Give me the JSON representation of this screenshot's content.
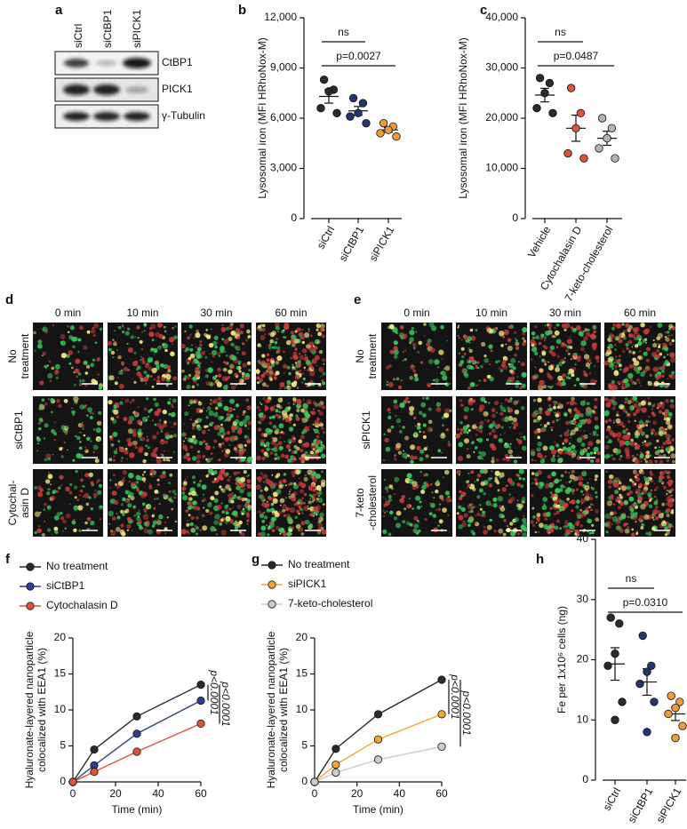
{
  "panel_labels": [
    "a",
    "b",
    "c",
    "d",
    "e",
    "f",
    "g",
    "h"
  ],
  "blot": {
    "lanes": [
      "siCtrl",
      "siCtBP1",
      "siPICK1"
    ],
    "rows": [
      "CtBP1",
      "PICK1",
      "γ-Tubulin"
    ]
  },
  "micrographs": {
    "d": {
      "columns": [
        "0 min",
        "10 min",
        "30 min",
        "60 min"
      ],
      "rows": [
        [
          "No",
          "treatment"
        ],
        [
          "siCtBP1"
        ],
        [
          "Cytochal-",
          "asin D"
        ]
      ]
    },
    "e": {
      "columns": [
        "0 min",
        "10 min",
        "30 min",
        "60 min"
      ],
      "rows": [
        [
          "No",
          "treatment"
        ],
        [
          "siPICK1"
        ],
        [
          "7-keto",
          "-cholesterol"
        ]
      ]
    }
  },
  "chart_data": [
    {
      "type": "dot",
      "ylabel": "Lysosomal iron (MFI HRhoNox-M)",
      "categories": [
        "siCtrl",
        "siCtBP1",
        "siPICK1"
      ],
      "colors": [
        "#2b2b2b",
        "#24356f",
        "#ef9a3c"
      ],
      "values": [
        [
          8300,
          7700,
          7600,
          6600,
          6300
        ],
        [
          7200,
          6900,
          6300,
          6100,
          5700
        ],
        [
          5700,
          5500,
          5300,
          5100,
          4900
        ]
      ],
      "means": [
        7300,
        6440,
        5300
      ],
      "sems": [
        400,
        260,
        140
      ],
      "ylim": [
        0,
        12000
      ],
      "yticks": [
        0,
        {
          "value": 3000,
          "label": "3,000"
        },
        {
          "value": 6000,
          "label": "6,000"
        },
        {
          "value": 9000,
          "label": "9,000"
        },
        {
          "value": 12000,
          "label": "12,000"
        }
      ],
      "comparisons": [
        {
          "label": "ns",
          "groups": [
            "siCtrl",
            "siCtBP1"
          ]
        },
        {
          "label": "p=0.0027",
          "groups": [
            "siCtrl",
            "siPICK1"
          ]
        }
      ]
    },
    {
      "type": "dot",
      "ylabel": "Lysosomal iron (MFI HRhoNox-M)",
      "categories": [
        "Vehicle",
        "Cytochalasin D",
        "7-keto-cholesterol"
      ],
      "colors": [
        "#2b2b2b",
        "#e0523a",
        "#b3b3b3"
      ],
      "values": [
        [
          28000,
          27000,
          25000,
          22000,
          21000
        ],
        [
          26000,
          21000,
          18000,
          13000,
          12000
        ],
        [
          20000,
          18000,
          16000,
          14000,
          12000
        ]
      ],
      "means": [
        24600,
        18000,
        16000
      ],
      "sems": [
        1350,
        2600,
        1400
      ],
      "ylim": [
        0,
        40000
      ],
      "yticks": [
        0,
        {
          "value": 10000,
          "label": "10,000"
        },
        {
          "value": 20000,
          "label": "20,000"
        },
        {
          "value": 30000,
          "label": "30,000"
        },
        {
          "value": 40000,
          "label": "40,000"
        }
      ],
      "comparisons": [
        {
          "label": "ns",
          "groups": [
            "Vehicle",
            "Cytochalasin D"
          ]
        },
        {
          "label": "p=0.0487",
          "groups": [
            "Vehicle",
            "7-keto-cholesterol"
          ]
        }
      ]
    },
    {
      "type": "line",
      "xlabel": "Time (min)",
      "ylabel": [
        "Hyaluronate-layered nanoparticle",
        "colocalized with EEA1 (%)"
      ],
      "x": [
        0,
        10,
        30,
        60
      ],
      "xlim": [
        0,
        60
      ],
      "xticks": [
        0,
        20,
        40,
        60
      ],
      "ylim": [
        0,
        20
      ],
      "yticks": [
        0,
        5,
        10,
        15,
        20
      ],
      "series": [
        {
          "name": "No treatment",
          "color": "#2b2b2b",
          "values": [
            0,
            4.5,
            9.1,
            13.5
          ]
        },
        {
          "name": "siCtBP1",
          "color": "#2e3f8f",
          "values": [
            0,
            2.3,
            6.7,
            11.3
          ]
        },
        {
          "name": "Cytochalasin D",
          "color": "#e0523a",
          "values": [
            0,
            1.4,
            4.2,
            8.1
          ]
        }
      ],
      "comparisons": [
        {
          "label": "p<0.0001",
          "series": [
            "No treatment",
            "siCtBP1"
          ]
        },
        {
          "label": "p<0.0001",
          "series": [
            "No treatment",
            "Cytochalasin D"
          ]
        }
      ]
    },
    {
      "type": "line",
      "xlabel": "Time (min)",
      "ylabel": [
        "Hyaluronate-layered nanoparticle",
        "colocalized with EEA1 (%)"
      ],
      "x": [
        0,
        10,
        30,
        60
      ],
      "xlim": [
        0,
        60
      ],
      "xticks": [
        0,
        20,
        40,
        60
      ],
      "ylim": [
        0,
        20
      ],
      "yticks": [
        0,
        5,
        10,
        15,
        20
      ],
      "series": [
        {
          "name": "No treatment",
          "color": "#2b2b2b",
          "values": [
            0,
            4.6,
            9.4,
            14.2
          ]
        },
        {
          "name": "siPICK1",
          "color": "#f5a531",
          "values": [
            0,
            2.4,
            5.9,
            9.4
          ]
        },
        {
          "name": "7-keto-cholesterol",
          "color": "#cccccc",
          "values": [
            0,
            1.3,
            3.1,
            4.9
          ]
        }
      ],
      "comparisons": [
        {
          "label": "p<0.0001",
          "series": [
            "No treatment",
            "siPICK1"
          ]
        },
        {
          "label": "p<0.0001",
          "series": [
            "No treatment",
            "7-keto-cholesterol"
          ]
        }
      ]
    },
    {
      "type": "dot",
      "ylabel": "Fe per 1x10⁶ cells (ng)",
      "categories": [
        "siCtrl",
        "siCtBP1",
        "siPICK1"
      ],
      "colors": [
        "#2b2b2b",
        "#24356f",
        "#ef9a3c"
      ],
      "values": [
        [
          27,
          26,
          21,
          19,
          13,
          10
        ],
        [
          24,
          19,
          18,
          16,
          13,
          8
        ],
        [
          14,
          13,
          12,
          11,
          9,
          7
        ]
      ],
      "means": [
        19.3,
        16.3,
        11
      ],
      "sems": [
        2.7,
        2.2,
        1.1
      ],
      "ylim": [
        0,
        40
      ],
      "yticks": [
        0,
        10,
        20,
        30,
        40
      ],
      "comparisons": [
        {
          "label": "ns",
          "groups": [
            "siCtrl",
            "siCtBP1"
          ]
        },
        {
          "label": "p=0.0310",
          "groups": [
            "siCtrl",
            "siPICK1"
          ]
        }
      ]
    }
  ]
}
